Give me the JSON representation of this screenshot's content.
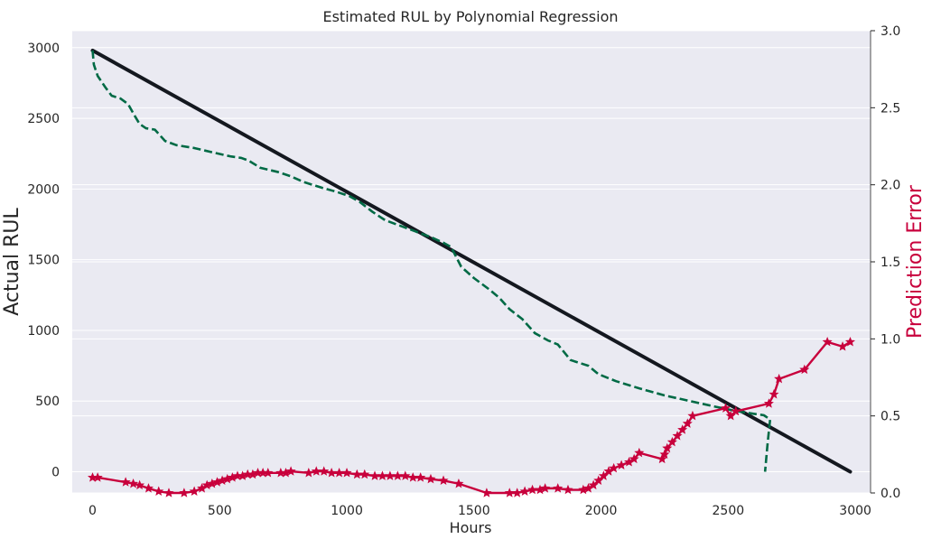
{
  "chart_data": {
    "type": "line",
    "title": "Estimated RUL by Polynomial Regression",
    "xlabel": "Hours",
    "ylabel_left": "Actual RUL",
    "ylabel_right": "Prediction Error",
    "xlim": [
      -80,
      3060
    ],
    "ylim_left": [
      -150,
      3120
    ],
    "ylim_right": [
      0.0,
      3.0
    ],
    "x_ticks": [
      0,
      500,
      1000,
      1500,
      2000,
      2500,
      3000
    ],
    "y_left_ticks": [
      0,
      500,
      1000,
      1500,
      2000,
      2500,
      3000
    ],
    "y_right_ticks": [
      0.0,
      0.5,
      1.0,
      1.5,
      2.0,
      2.5,
      3.0
    ],
    "grid": true,
    "colors": {
      "background": "#eaeaf2",
      "grid": "#ffffff",
      "actual": "#14181f",
      "estimated": "#006a45",
      "error": "#c8003c"
    },
    "series": [
      {
        "axis": "left",
        "style": "solid",
        "x": [
          0,
          2980
        ],
        "y": [
          2980,
          0
        ]
      },
      {
        "axis": "left",
        "style": "dashed",
        "x": [
          0,
          5,
          20,
          50,
          75,
          110,
          140,
          165,
          185,
          210,
          245,
          265,
          285,
          330,
          400,
          470,
          545,
          585,
          615,
          660,
          730,
          780,
          830,
          900,
          960,
          1010,
          1050,
          1100,
          1150,
          1210,
          1270,
          1330,
          1380,
          1410,
          1450,
          1500,
          1560,
          1600,
          1640,
          1690,
          1740,
          1790,
          1830,
          1880,
          1950,
          1990,
          2060,
          2150,
          2250,
          2350,
          2450,
          2530,
          2600,
          2640,
          2665,
          2655,
          2645
        ],
        "y": [
          2980,
          2880,
          2800,
          2720,
          2660,
          2640,
          2600,
          2520,
          2460,
          2430,
          2420,
          2380,
          2340,
          2310,
          2290,
          2260,
          2230,
          2220,
          2200,
          2150,
          2120,
          2090,
          2050,
          2010,
          1980,
          1950,
          1910,
          1840,
          1780,
          1740,
          1700,
          1660,
          1620,
          1590,
          1450,
          1370,
          1290,
          1230,
          1150,
          1080,
          980,
          930,
          900,
          790,
          750,
          690,
          640,
          590,
          540,
          500,
          460,
          430,
          410,
          400,
          370,
          200,
          0
        ]
      },
      {
        "axis": "right",
        "style": "solid",
        "marker": "star",
        "x": [
          0,
          20,
          130,
          160,
          185,
          220,
          260,
          300,
          360,
          400,
          430,
          450,
          470,
          490,
          510,
          530,
          550,
          570,
          590,
          610,
          630,
          650,
          670,
          690,
          740,
          760,
          780,
          850,
          880,
          910,
          940,
          970,
          1000,
          1040,
          1070,
          1110,
          1140,
          1170,
          1200,
          1230,
          1260,
          1290,
          1330,
          1380,
          1440,
          1550,
          1640,
          1670,
          1700,
          1730,
          1760,
          1780,
          1830,
          1870,
          1930,
          1950,
          1970,
          1990,
          2010,
          2030,
          2050,
          2080,
          2110,
          2130,
          2150,
          2240,
          2250,
          2260,
          2280,
          2300,
          2320,
          2340,
          2360,
          2490,
          2510,
          2530,
          2660,
          2680,
          2700,
          2800,
          2890,
          2950,
          2980
        ],
        "y": [
          0.1,
          0.1,
          0.07,
          0.06,
          0.05,
          0.03,
          0.01,
          0.0,
          0.0,
          0.01,
          0.03,
          0.05,
          0.06,
          0.07,
          0.08,
          0.09,
          0.1,
          0.11,
          0.11,
          0.12,
          0.12,
          0.13,
          0.13,
          0.13,
          0.13,
          0.13,
          0.14,
          0.13,
          0.14,
          0.14,
          0.13,
          0.13,
          0.13,
          0.12,
          0.12,
          0.11,
          0.11,
          0.11,
          0.11,
          0.11,
          0.1,
          0.1,
          0.09,
          0.08,
          0.06,
          0.0,
          0.0,
          0.0,
          0.01,
          0.02,
          0.02,
          0.03,
          0.03,
          0.02,
          0.02,
          0.03,
          0.05,
          0.08,
          0.11,
          0.14,
          0.16,
          0.18,
          0.2,
          0.22,
          0.26,
          0.22,
          0.25,
          0.29,
          0.33,
          0.37,
          0.41,
          0.45,
          0.5,
          0.55,
          0.5,
          0.53,
          0.58,
          0.64,
          0.74,
          0.8,
          0.98,
          0.95,
          0.98
        ]
      }
    ]
  }
}
